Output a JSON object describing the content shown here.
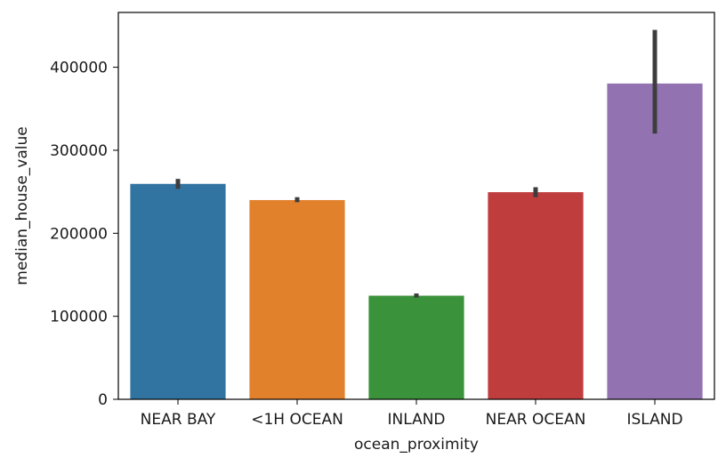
{
  "chart_data": {
    "type": "bar",
    "xlabel": "ocean_proximity",
    "ylabel": "median_house_value",
    "categories": [
      "NEAR BAY",
      "<1H OCEAN",
      "INLAND",
      "NEAR OCEAN",
      "ISLAND"
    ],
    "values": [
      259500,
      240000,
      124800,
      249500,
      380400
    ],
    "error_bars": [
      [
        253500,
        265500
      ],
      [
        237500,
        243500
      ],
      [
        122500,
        127500
      ],
      [
        243500,
        255500
      ],
      [
        320000,
        445000
      ]
    ],
    "colors": [
      "#3274a1",
      "#e1812c",
      "#3a923a",
      "#c03d3e",
      "#9372b2"
    ],
    "error_bar_color": "#3d3d3d",
    "ylim": [
      0,
      466000
    ],
    "yticks": [
      0,
      100000,
      200000,
      300000,
      400000
    ],
    "ytick_labels": [
      "0",
      "100000",
      "200000",
      "300000",
      "400000"
    ],
    "grid": false,
    "legend": "none"
  }
}
